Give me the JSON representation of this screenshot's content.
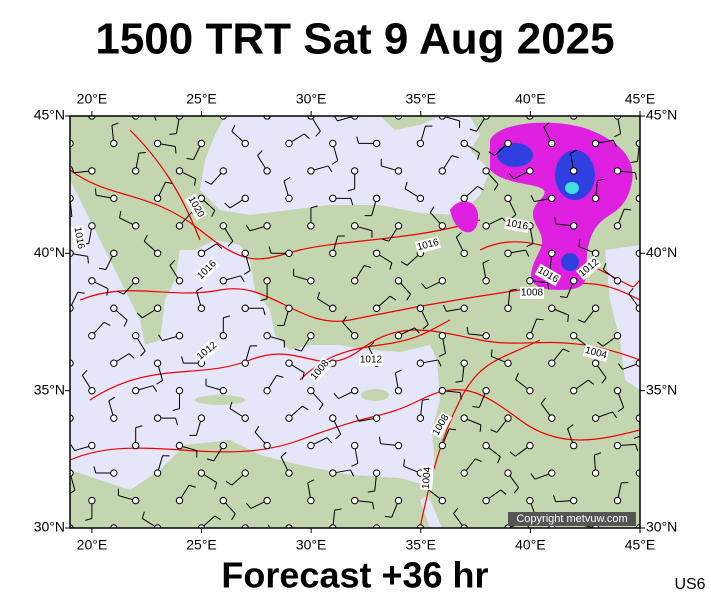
{
  "title": "1500 TRT Sat 9 Aug 2025",
  "footer": "Forecast +36 hr",
  "code": "US6",
  "copyright": "Copyright metvuw.com",
  "map": {
    "xlim": [
      19,
      45
    ],
    "ylim": [
      30,
      45
    ],
    "xticks": [
      {
        "value": 20,
        "label": "20°E"
      },
      {
        "value": 25,
        "label": "25°E"
      },
      {
        "value": 30,
        "label": "30°E"
      },
      {
        "value": 35,
        "label": "35°E"
      },
      {
        "value": 40,
        "label": "40°E"
      },
      {
        "value": 45,
        "label": "45°E"
      }
    ],
    "yticks": [
      {
        "value": 30,
        "label": "30°N"
      },
      {
        "value": 35,
        "label": "35°N"
      },
      {
        "value": 40,
        "label": "40°N"
      },
      {
        "value": 45,
        "label": "45°N"
      }
    ]
  },
  "isobar_labels": [
    1020,
    1016,
    1016,
    1012,
    1008,
    1012,
    1016,
    1016,
    1016,
    1012,
    1008,
    1004,
    1008,
    1004
  ]
}
